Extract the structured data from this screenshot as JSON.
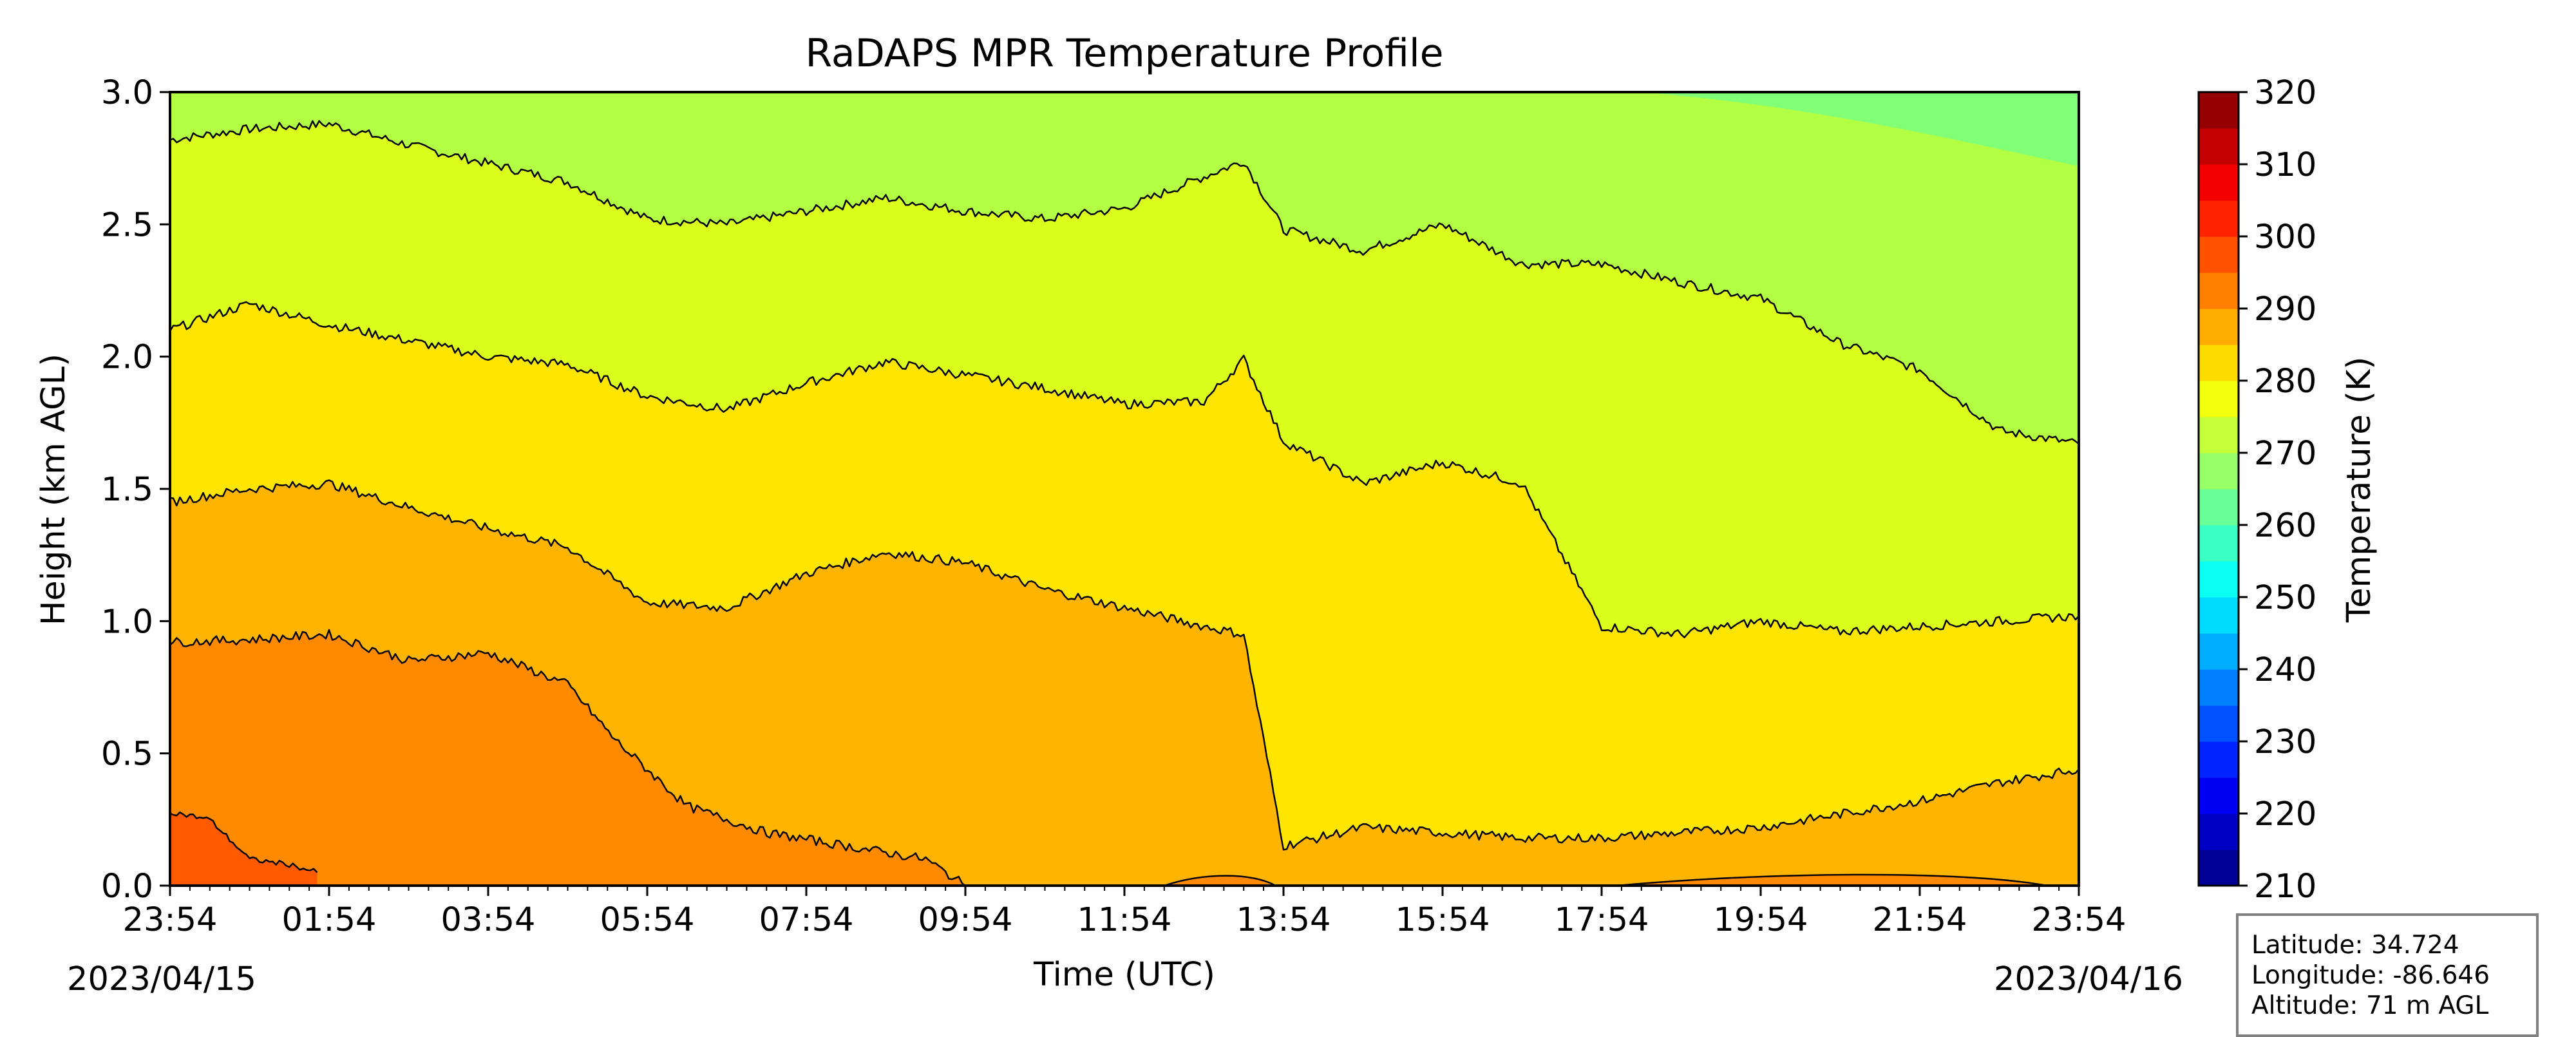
{
  "chart_data": {
    "type": "filled-contour",
    "title": "RaDAPS MPR Temperature Profile",
    "xlabel": "Time (UTC)",
    "ylabel": "Height (km AGL)",
    "xlim": [
      "2023-04-15T23:54",
      "2023-04-16T23:54"
    ],
    "x_ticks": [
      "23:54",
      "01:54",
      "03:54",
      "05:54",
      "07:54",
      "09:54",
      "11:54",
      "13:54",
      "15:54",
      "17:54",
      "19:54",
      "21:54",
      "23:54"
    ],
    "start_date": "2023/04/15",
    "end_date": "2023/04/16",
    "ylim": [
      0.0,
      3.0
    ],
    "y_ticks": [
      "0.0",
      "0.5",
      "1.0",
      "1.5",
      "2.0",
      "2.5",
      "3.0"
    ],
    "colorbar": {
      "label": "Temperature (K)",
      "vmin": 210,
      "vmax": 320,
      "ticks": [
        "210",
        "220",
        "230",
        "240",
        "250",
        "260",
        "270",
        "280",
        "290",
        "300",
        "310",
        "320"
      ],
      "colormap": "jet"
    },
    "contour_lines_K": [
      275,
      280,
      285,
      290,
      295
    ],
    "band_colors": {
      "270-275": "#80ff77",
      "275-280": "#b2ff43",
      "280-285": "#dbff1c",
      "285-290": "#ffe500",
      "290-295": "#ffb400",
      "295-300": "#ff8a00",
      "300-305": "#ff5a00"
    },
    "contour_heights_km": {
      "hours": [
        0,
        1,
        2,
        3,
        4,
        5,
        6,
        7,
        8,
        9,
        10,
        11,
        12,
        13,
        13.5,
        14,
        15,
        16,
        17,
        18,
        19,
        20,
        21,
        22,
        23,
        24
      ],
      "iso_275": [
        2.82,
        2.86,
        2.88,
        2.8,
        2.73,
        2.66,
        2.52,
        2.5,
        2.55,
        2.6,
        2.55,
        2.52,
        2.56,
        2.68,
        2.74,
        2.48,
        2.4,
        2.5,
        2.35,
        2.35,
        2.28,
        2.22,
        2.05,
        1.95,
        1.72,
        1.67
      ],
      "iso_280": [
        2.1,
        2.2,
        2.12,
        2.06,
        2.0,
        1.97,
        1.85,
        1.8,
        1.9,
        1.98,
        1.93,
        1.88,
        1.82,
        1.83,
        1.99,
        1.68,
        1.52,
        1.6,
        1.52,
        0.98,
        0.95,
        1.0,
        0.96,
        0.98,
        1.0,
        1.02
      ],
      "iso_285": [
        1.45,
        1.5,
        1.52,
        1.43,
        1.35,
        1.28,
        1.07,
        1.05,
        1.18,
        1.26,
        1.22,
        1.12,
        1.05,
        0.98,
        0.95,
        0.15,
        0.22,
        0.2,
        0.18,
        0.18,
        0.2,
        0.22,
        0.27,
        0.32,
        0.39,
        0.44
      ],
      "iso_290": [
        0.92,
        0.93,
        0.95,
        0.85,
        0.88,
        0.76,
        0.55,
        0.3,
        0.2,
        0.1,
        0.0
      ],
      "iso_290_hours": [
        0,
        1,
        2,
        3,
        4,
        5,
        5.6,
        6.5,
        7.5,
        9.5,
        10
      ],
      "iso_295": [
        0.28,
        0.25,
        0.1,
        0.08,
        0.05
      ],
      "iso_295_hours": [
        0,
        0.5,
        1,
        1.5,
        1.85
      ]
    }
  },
  "info": {
    "latitude": "Latitude: 34.724",
    "longitude": "Longitude: -86.646",
    "altitude": "Altitude: 71 m AGL"
  }
}
